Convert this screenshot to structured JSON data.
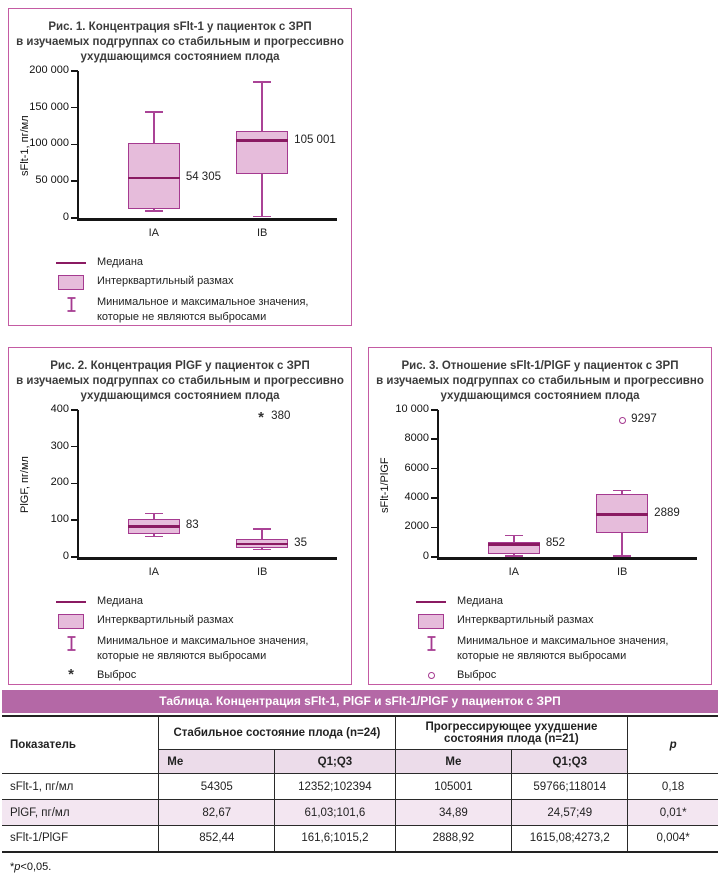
{
  "colors": {
    "panel_border": "#c45ba3",
    "box_fill": "#e6bcdb",
    "box_border": "#a53a90",
    "median_line": "#8a1a62",
    "whisker": "#aa4396",
    "axis": "#151515",
    "table_title_bg": "#b468a6",
    "table_subheader_bg": "#ecdcea",
    "table_alt_row_bg": "#f3e6f1"
  },
  "chart_data": [
    {
      "type": "box",
      "title_lines": [
        "Рис. 1. Концентрация sFlt-1 у пациенток с ЗРП",
        "в изучаемых подгруппах со стабильным и прогрессивно",
        "ухудшающимся состоянием плода"
      ],
      "ylabel": "sFlt-1, пг/мл",
      "ylim": [
        0,
        200000
      ],
      "yticks": [
        {
          "value": 0,
          "label": "0"
        },
        {
          "value": 50000,
          "label": "50 000"
        },
        {
          "value": 100000,
          "label": "100 000"
        },
        {
          "value": 150000,
          "label": "150 000"
        },
        {
          "value": 200000,
          "label": "200 000"
        }
      ],
      "categories": [
        "IA",
        "IB"
      ],
      "series": [
        {
          "category": "IA",
          "min": 9500,
          "q1": 12352,
          "median": 54305,
          "q3": 102394,
          "max": 144000,
          "median_label": "54 305"
        },
        {
          "category": "IB",
          "min": 2000,
          "q1": 59766,
          "median": 105001,
          "q3": 118014,
          "max": 185000,
          "median_label": "105 001"
        }
      ],
      "outliers": [],
      "legend": [
        {
          "marker": "median",
          "label": "Медиана"
        },
        {
          "marker": "box",
          "label": "Интерквартильный размах"
        },
        {
          "marker": "whisker",
          "label": "Минимальное и максимальное значения,\nкоторые не являются выбросами"
        }
      ]
    },
    {
      "type": "box",
      "title_lines": [
        "Рис. 2. Концентрация PlGF у пациенток с ЗРП",
        "в изучаемых подгруппах со стабильным и прогрессивно",
        "ухудшающимся состоянием плода"
      ],
      "ylabel": "PlGF, пг/мл",
      "ylim": [
        0,
        400
      ],
      "yticks": [
        {
          "value": 0,
          "label": "0"
        },
        {
          "value": 100,
          "label": "100"
        },
        {
          "value": 200,
          "label": "200"
        },
        {
          "value": 300,
          "label": "300"
        },
        {
          "value": 400,
          "label": "400"
        }
      ],
      "categories": [
        "IA",
        "IB"
      ],
      "series": [
        {
          "category": "IA",
          "min": 55,
          "q1": 61.03,
          "median": 83,
          "q3": 101.6,
          "max": 118,
          "median_label": "83"
        },
        {
          "category": "IB",
          "min": 20,
          "q1": 24.57,
          "median": 35,
          "q3": 49,
          "max": 75,
          "median_label": "35"
        }
      ],
      "outliers": [
        {
          "category": "IB",
          "value": 380,
          "marker": "asterisk",
          "label": "380"
        }
      ],
      "legend": [
        {
          "marker": "median",
          "label": "Медиана"
        },
        {
          "marker": "box",
          "label": "Интерквартильный размах"
        },
        {
          "marker": "whisker",
          "label": "Минимальное и максимальное значения,\nкоторые не являются выбросами"
        },
        {
          "marker": "asterisk",
          "label": "Выброс"
        }
      ]
    },
    {
      "type": "box",
      "title_lines": [
        "Рис. 3. Отношение sFlt-1/PlGF у пациенток с ЗРП",
        "в изучаемых подгруппах со стабильным и прогрессивно",
        "ухудшающимся состоянием плода"
      ],
      "ylabel": "sFlt-1/PlGF",
      "ylim": [
        0,
        10000
      ],
      "yticks": [
        {
          "value": 0,
          "label": "0"
        },
        {
          "value": 2000,
          "label": "2000"
        },
        {
          "value": 4000,
          "label": "4000"
        },
        {
          "value": 6000,
          "label": "6000"
        },
        {
          "value": 8000,
          "label": "8000"
        },
        {
          "value": 10000,
          "label": "10 000"
        }
      ],
      "categories": [
        "IA",
        "IB"
      ],
      "series": [
        {
          "category": "IA",
          "min": 70,
          "q1": 161.6,
          "median": 852,
          "q3": 1015.2,
          "max": 1450,
          "median_label": "852"
        },
        {
          "category": "IB",
          "min": 60,
          "q1": 1615.08,
          "median": 2889,
          "q3": 4273.2,
          "max": 4500,
          "median_label": "2889"
        }
      ],
      "outliers": [
        {
          "category": "IB",
          "value": 9297,
          "marker": "circle",
          "label": "9297"
        }
      ],
      "legend": [
        {
          "marker": "median",
          "label": "Медиана"
        },
        {
          "marker": "box",
          "label": "Интерквартильный размах"
        },
        {
          "marker": "whisker",
          "label": "Минимальное и максимальное значения,\nкоторые не являются выбросами"
        },
        {
          "marker": "circle",
          "label": "Выброс"
        }
      ]
    }
  ],
  "table": {
    "title": "Таблица. Концентрация sFlt-1, PlGF и sFlt-1/PlGF у пациенток с ЗРП",
    "columns": {
      "indicator": "Показатель",
      "group1": "Стабильное состояние плода (n=24)",
      "group2": "Прогрессирующее ухудшение состояния плода (n=21)",
      "sub": [
        "Me",
        "Q1;Q3",
        "Me",
        "Q1;Q3"
      ],
      "p": "p"
    },
    "rows": [
      [
        "sFlt-1, пг/мл",
        "54305",
        "12352;102394",
        "105001",
        "59766;118014",
        "0,18"
      ],
      [
        "PlGF, пг/мл",
        "82,67",
        "61,03;101,6",
        "34,89",
        "24,57;49",
        "0,01*"
      ],
      [
        "sFlt-1/PlGF",
        "852,44",
        "161,6;1015,2",
        "2888,92",
        "1615,08;4273,2",
        "0,004*"
      ]
    ],
    "footnote": {
      "star": "*",
      "p_symbol": "p",
      "rest": "<0,05."
    }
  }
}
